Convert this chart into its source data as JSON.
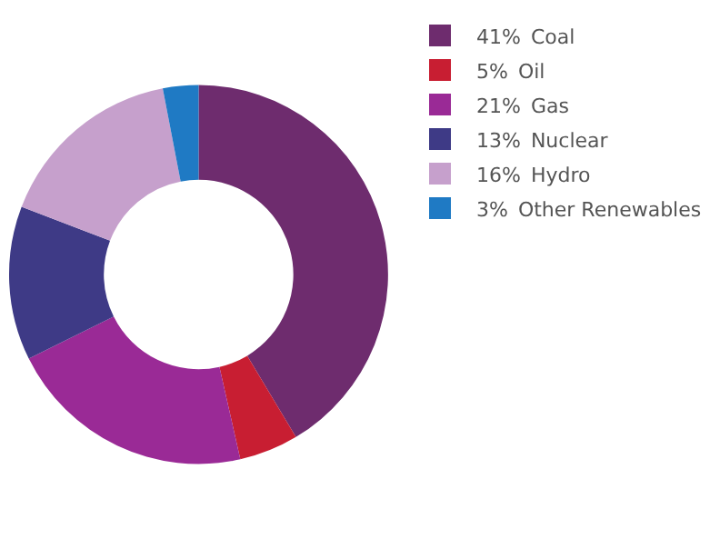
{
  "chart_data": {
    "type": "donut",
    "categories": [
      "Coal",
      "Oil",
      "Gas",
      "Nuclear",
      "Hydro",
      "Other Renewables"
    ],
    "values": [
      41,
      5,
      21,
      13,
      16,
      3
    ],
    "value_labels": [
      "41%",
      "5%",
      "21%",
      "13%",
      "16%",
      "3%"
    ],
    "colors": [
      "#6e2c6e",
      "#c81e32",
      "#9a2a96",
      "#3e3a86",
      "#c6a0cc",
      "#1f7ac4"
    ],
    "legend": "top right"
  }
}
